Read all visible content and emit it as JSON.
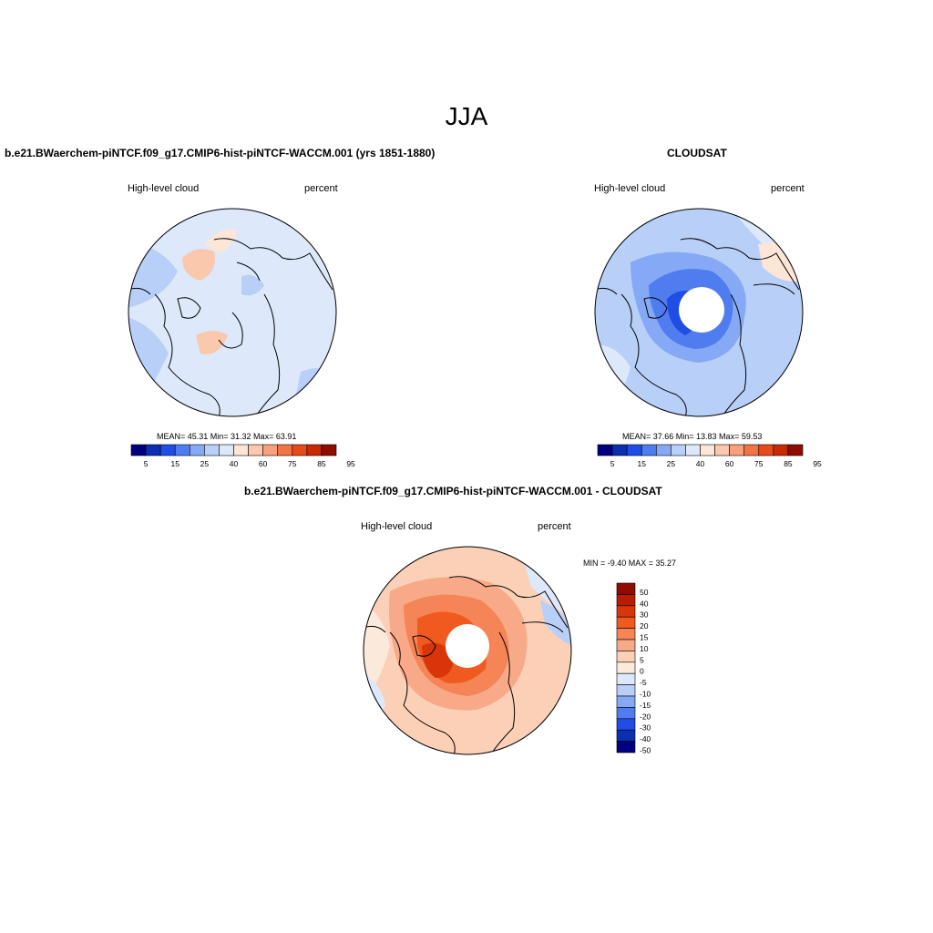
{
  "title": "JJA",
  "top_left": {
    "case_title": "b.e21.BWaerchem-piNTCF.f09_g17.CMIP6-hist-piNTCF-WACCM.001 (yrs 1851-1880)",
    "variable": "High-level cloud",
    "units": "percent",
    "stats_text": "MEAN=  45.31  Min=  31.32  Max=  63.91",
    "stats": {
      "mean": 45.31,
      "min": 31.32,
      "max": 63.91
    }
  },
  "top_right": {
    "case_title": "CLOUDSAT",
    "variable": "High-level cloud",
    "units": "percent",
    "stats_text": "MEAN=  37.66  Min=  13.83  Max=  59.53",
    "stats": {
      "mean": 37.66,
      "min": 13.83,
      "max": 59.53
    }
  },
  "bottom": {
    "case_title": "b.e21.BWaerchem-piNTCF.f09_g17.CMIP6-hist-piNTCF-WACCM.001 - CLOUDSAT",
    "variable": "High-level cloud",
    "units": "percent",
    "stats_text": "MIN =  -9.40 MAX =  35.27",
    "stats": {
      "min": -9.4,
      "max": 35.27
    }
  },
  "colorbar_field": {
    "labels": [
      "5",
      "15",
      "25",
      "40",
      "60",
      "75",
      "85",
      "95"
    ],
    "colors": [
      "#00007f",
      "#0a2fb0",
      "#1f4de6",
      "#4f7df0",
      "#86a9f5",
      "#b8cff8",
      "#dde9fb",
      "#fde6d6",
      "#fac8ad",
      "#f8a07c",
      "#f27444",
      "#e84a1a",
      "#c82a06",
      "#8f0d00"
    ]
  },
  "colorbar_diff": {
    "labels": [
      "50",
      "40",
      "30",
      "20",
      "15",
      "10",
      "5",
      "0",
      "-5",
      "-10",
      "-15",
      "-20",
      "-30",
      "-40",
      "-50"
    ],
    "colors": [
      "#8f0d00",
      "#b81c04",
      "#d83608",
      "#f05a1e",
      "#f58456",
      "#f8a987",
      "#fbd0b7",
      "#fbe9dc",
      "#dde9fb",
      "#b8cff8",
      "#86a9f5",
      "#4f7df0",
      "#1f4de6",
      "#0a2fb0",
      "#00007f"
    ]
  }
}
